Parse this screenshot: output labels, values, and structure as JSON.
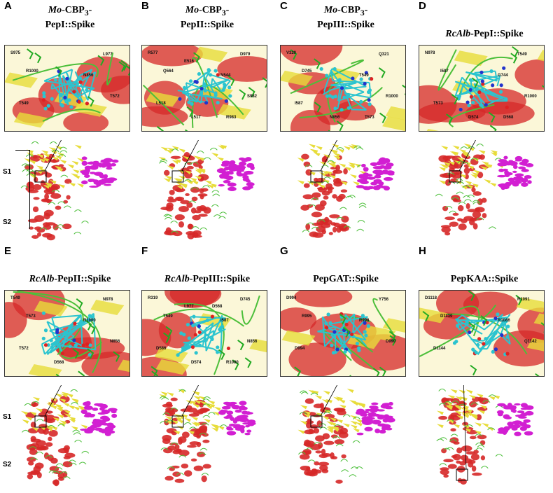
{
  "panels": [
    {
      "letter": "A",
      "title_italic": "Mo",
      "title_rest": "-CBP",
      "title_sub": "3",
      "title_tail": "-",
      "title_line2": "PepI::Spike",
      "residues": [
        "S975",
        "L977",
        "R1000",
        "N856",
        "T549",
        "T572"
      ]
    },
    {
      "letter": "B",
      "title_italic": "Mo",
      "title_rest": "-CBP",
      "title_sub": "3",
      "title_tail": "-",
      "title_line2": "PepII::Spike",
      "residues": [
        "R577",
        "D979",
        "Q564",
        "N544",
        "L518",
        "S982",
        "L517",
        "R983",
        "E516"
      ]
    },
    {
      "letter": "C",
      "title_italic": "Mo",
      "title_rest": "-CBP",
      "title_sub": "3",
      "title_tail": "-",
      "title_line2": "PepIII::Spike",
      "residues": [
        "V320",
        "Q321",
        "D745",
        "T549",
        "I587",
        "R1000",
        "N856",
        "T573"
      ]
    },
    {
      "letter": "D",
      "title_italic": "RcAlb",
      "title_rest": "-PepI::Spike",
      "title_sub": "",
      "title_tail": "",
      "title_line2": "",
      "residues": [
        "N978",
        "T549",
        "I587",
        "G744",
        "T573",
        "R1000",
        "D574",
        "D568"
      ]
    },
    {
      "letter": "E",
      "title_italic": "RcAlb",
      "title_rest": "-PepII::Spike",
      "title_sub": "",
      "title_tail": "",
      "title_line2": "",
      "residues": [
        "T549",
        "N978",
        "T573",
        "R1000",
        "T572",
        "N856",
        "D568"
      ]
    },
    {
      "letter": "F",
      "title_italic": "RcAlb",
      "title_rest": "-PepIII::Spike",
      "title_sub": "",
      "title_tail": "",
      "title_line2": "",
      "residues": [
        "R319",
        "D745",
        "T549",
        "I587",
        "D586",
        "N856",
        "D574",
        "R1000",
        "L977",
        "D568"
      ]
    },
    {
      "letter": "G",
      "title_italic": "",
      "title_rest": "PepGAT::Spike",
      "title_sub": "",
      "title_tail": "",
      "title_line2": "",
      "residues": [
        "D994",
        "Y756",
        "R995",
        "R998",
        "D994",
        "D990"
      ]
    },
    {
      "letter": "H",
      "title_italic": "",
      "title_rest": "PepKAA::Spike",
      "title_sub": "",
      "title_tail": "",
      "title_line2": "",
      "residues": [
        "D1118",
        "R1091",
        "D1139",
        "R1086",
        "D1144",
        "Q1142"
      ]
    }
  ],
  "domain_labels": {
    "s1": "S1",
    "s2": "S2"
  },
  "colors": {
    "helix": "#d62828",
    "sheet": "#e7dc3a",
    "loop": "#4cbf3a",
    "ligand": "#2bc4cf",
    "partner": "#d21fd2",
    "carbon": "#22aa22",
    "nitrogen": "#2233cc",
    "oxygen": "#dd2222"
  }
}
